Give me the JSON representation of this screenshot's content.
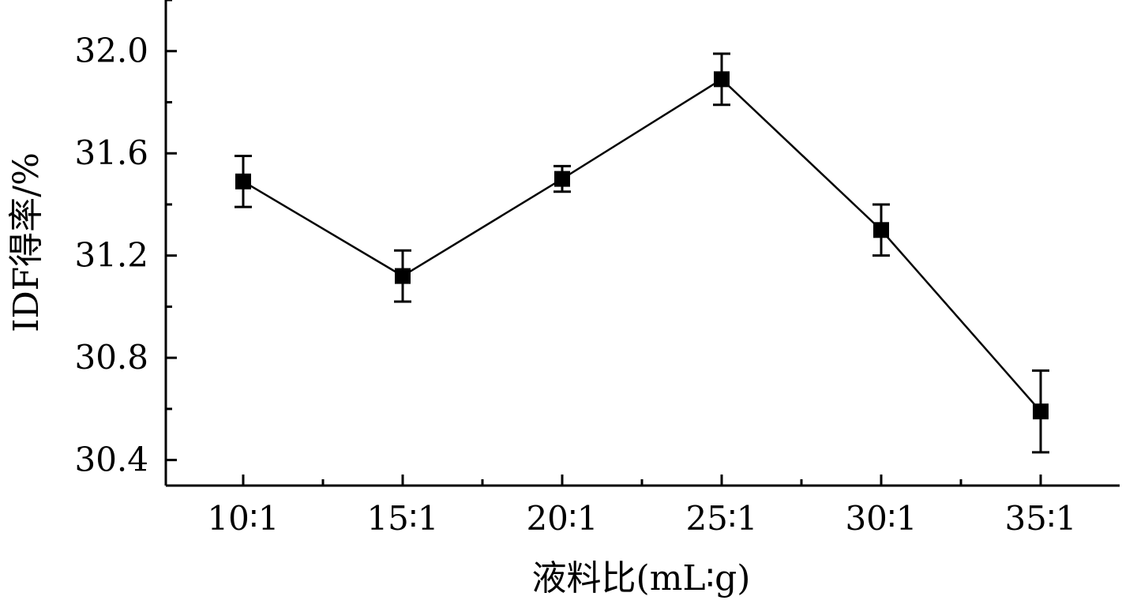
{
  "chart_data": {
    "type": "line",
    "title": "",
    "xlabel": "液料比(mL∶g)",
    "ylabel": "IDF得率/%",
    "categories": [
      "10∶1",
      "15∶1",
      "20∶1",
      "25∶1",
      "30∶1",
      "35∶1"
    ],
    "series": [
      {
        "values": [
          31.49,
          31.12,
          31.5,
          31.89,
          31.3,
          30.59
        ],
        "error": [
          0.1,
          0.1,
          0.05,
          0.1,
          0.1,
          0.16
        ],
        "marker": "square",
        "color": "#000000"
      }
    ],
    "ylim": [
      30.3,
      32.2
    ],
    "yticks": [
      "30.4",
      "30.8",
      "31.2",
      "31.6",
      "32.0"
    ],
    "grid": false,
    "legend": "none"
  }
}
